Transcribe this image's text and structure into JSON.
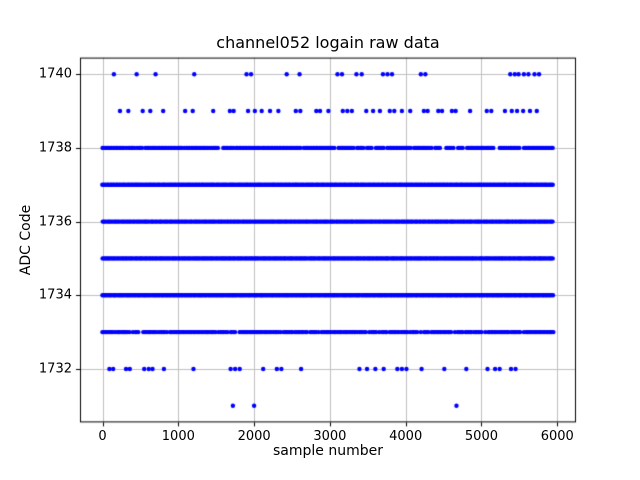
{
  "chart_data": {
    "type": "scatter",
    "title": "channel052 logain raw data",
    "xlabel": "sample number",
    "ylabel": "ADC Code",
    "marker_color": "#0000ff",
    "grid": true,
    "grid_color": "#c0c0c0",
    "spine_color": "#000000",
    "xlim": [
      -297.5,
      6247.5
    ],
    "ylim": [
      1730.55,
      1740.45
    ],
    "x_ticks": [
      0,
      1000,
      2000,
      3000,
      4000,
      5000,
      6000
    ],
    "y_ticks": [
      1732,
      1734,
      1736,
      1738,
      1740
    ],
    "levels": [
      {
        "adc": 1740,
        "points": [
          150,
          450,
          700,
          1210,
          1900,
          1960,
          2430,
          2600,
          3100,
          3160,
          3350,
          3420,
          3700,
          3760,
          3820,
          4200,
          4260,
          5380,
          5440,
          5490,
          5560,
          5620,
          5700,
          5760
        ]
      },
      {
        "adc": 1739,
        "points": [
          230,
          340,
          530,
          630,
          800,
          1090,
          1190,
          1460,
          1680,
          1730,
          1920,
          2010,
          2100,
          2210,
          2320,
          2550,
          2610,
          2820,
          2870,
          2980,
          3170,
          3230,
          3290,
          3480,
          3570,
          3660,
          3790,
          3850,
          3950,
          4060,
          4240,
          4290,
          4430,
          4480,
          4610,
          4660,
          4850,
          5070,
          5130,
          5310,
          5400,
          5470,
          5550,
          5640,
          5730
        ]
      },
      {
        "adc": 1738,
        "segments": [
          [
            0,
            290
          ],
          [
            340,
            430
          ],
          [
            480,
            530
          ],
          [
            570,
            1060
          ],
          [
            1110,
            1390
          ],
          [
            1440,
            1530
          ],
          [
            1590,
            1710
          ],
          [
            1760,
            2060
          ],
          [
            2110,
            2610
          ],
          [
            2660,
            2720
          ],
          [
            2760,
            3060
          ],
          [
            3110,
            3310
          ],
          [
            3360,
            3420
          ],
          [
            3490,
            3560
          ],
          [
            3610,
            3710
          ],
          [
            3760,
            4060
          ],
          [
            4110,
            4310
          ],
          [
            4390,
            4460
          ],
          [
            4540,
            4610
          ],
          [
            4690,
            4760
          ],
          [
            4810,
            5010
          ],
          [
            5060,
            5160
          ],
          [
            5240,
            5310
          ],
          [
            5360,
            5510
          ],
          [
            5560,
            5950
          ]
        ],
        "points": [
          310,
          455,
          1080,
          1410,
          1730,
          2080,
          2740,
          3440,
          4340,
          4630,
          5030,
          5330
        ]
      },
      {
        "adc": 1737,
        "segments": [
          [
            0,
            5950
          ]
        ],
        "points": []
      },
      {
        "adc": 1736,
        "segments": [
          [
            0,
            5950
          ]
        ],
        "points": []
      },
      {
        "adc": 1735,
        "segments": [
          [
            0,
            5950
          ]
        ],
        "points": []
      },
      {
        "adc": 1734,
        "segments": [
          [
            0,
            5950
          ]
        ],
        "points": []
      },
      {
        "adc": 1733,
        "segments": [
          [
            0,
            140
          ],
          [
            190,
            360
          ],
          [
            430,
            480
          ],
          [
            540,
            700
          ],
          [
            760,
            820
          ],
          [
            890,
            1110
          ],
          [
            1160,
            1260
          ],
          [
            1310,
            1500
          ],
          [
            1560,
            1620
          ],
          [
            1690,
            1760
          ],
          [
            1810,
            2210
          ],
          [
            2260,
            2320
          ],
          [
            2390,
            2510
          ],
          [
            2560,
            2710
          ],
          [
            2760,
            2820
          ],
          [
            2890,
            3010
          ],
          [
            3060,
            3360
          ],
          [
            3410,
            3470
          ],
          [
            3550,
            3620
          ],
          [
            3690,
            3760
          ],
          [
            3810,
            3910
          ],
          [
            3960,
            4020
          ],
          [
            4090,
            4160
          ],
          [
            4240,
            4310
          ],
          [
            4360,
            4610
          ],
          [
            4690,
            4760
          ],
          [
            4810,
            4870
          ],
          [
            4920,
            5010
          ],
          [
            5090,
            5210
          ],
          [
            5260,
            5360
          ],
          [
            5410,
            5510
          ],
          [
            5590,
            5950
          ]
        ],
        "points": [
          165,
          400,
          730,
          850,
          1135,
          1285,
          1530,
          1650,
          2235,
          2350,
          2540,
          2740,
          2850,
          3040,
          3390,
          3520,
          3650,
          3790,
          3940,
          4060,
          4200,
          4340,
          4650,
          4790,
          4900,
          5050,
          5240,
          5390,
          5560
        ]
      },
      {
        "adc": 1732,
        "points": [
          90,
          140,
          310,
          360,
          550,
          610,
          660,
          810,
          1200,
          1690,
          1750,
          1810,
          2120,
          2300,
          2360,
          2620,
          3390,
          3490,
          3600,
          3710,
          3890,
          3950,
          4010,
          4210,
          4510,
          4800,
          5080,
          5180,
          5240,
          5390,
          5450
        ]
      },
      {
        "adc": 1731,
        "points": [
          1720,
          2000,
          4670
        ]
      }
    ]
  }
}
